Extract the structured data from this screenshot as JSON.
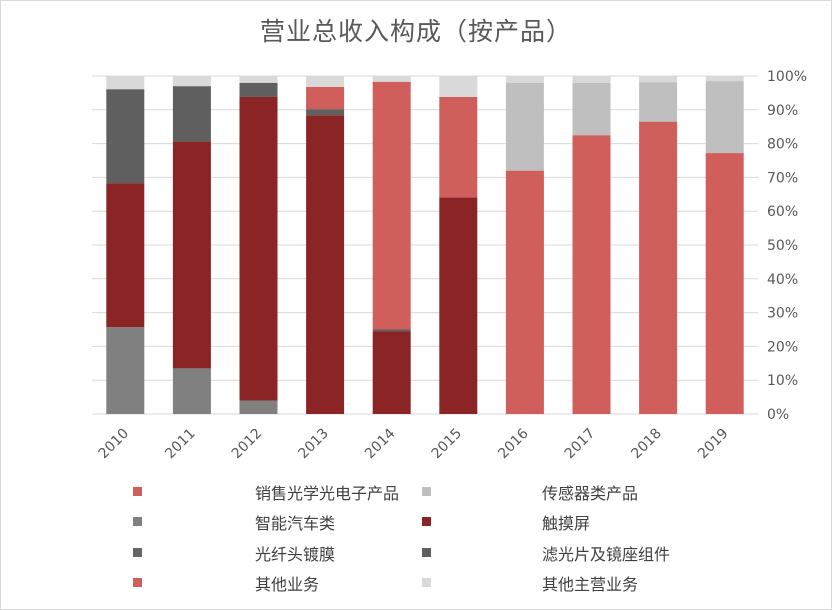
{
  "chart_data": {
    "type": "bar",
    "stacked": true,
    "percent": true,
    "title": "营业总收入构成（按产品）",
    "categories": [
      "2010",
      "2011",
      "2012",
      "2013",
      "2014",
      "2015",
      "2016",
      "2017",
      "2018",
      "2019"
    ],
    "y_ticks": [
      "0%",
      "10%",
      "20%",
      "30%",
      "40%",
      "50%",
      "60%",
      "70%",
      "80%",
      "90%",
      "100%"
    ],
    "ylim": [
      0,
      100
    ],
    "y_axis_side": "right",
    "legend_position": "bottom",
    "series": [
      {
        "name": "销售光学光电子产品",
        "color": "#d05f5c",
        "values": [
          0,
          0,
          0,
          0,
          0,
          0,
          72.0,
          82.5,
          86.5,
          77.2
        ]
      },
      {
        "name": "传感器类产品",
        "color": "#bfbfbf",
        "values": [
          0,
          0,
          0,
          0,
          0,
          0,
          26.0,
          15.5,
          11.7,
          21.3
        ]
      },
      {
        "name": "智能汽车类",
        "color": "#808080",
        "values": [
          25.7,
          13.5,
          4.0,
          0,
          0,
          0,
          0,
          0,
          0,
          0
        ]
      },
      {
        "name": "触摸屏",
        "color": "#8b2525",
        "values": [
          42.6,
          67.1,
          89.8,
          88.4,
          24.4,
          64.1,
          0,
          0,
          0,
          0
        ]
      },
      {
        "name": "光纤头镀膜",
        "color": "#666666",
        "values": [
          0,
          0,
          0,
          0,
          0,
          0,
          0,
          0,
          0,
          0
        ]
      },
      {
        "name": "滤光片及镜座组件",
        "color": "#5f5f5f",
        "values": [
          27.8,
          16.4,
          4.2,
          1.8,
          0.6,
          0,
          0,
          0,
          0,
          0
        ]
      },
      {
        "name": "其他业务",
        "color": "#d05f5c",
        "values": [
          0,
          0,
          0,
          6.6,
          73.3,
          29.7,
          0,
          0,
          0,
          0
        ]
      },
      {
        "name": "其他主营业务",
        "color": "#d9d9d9",
        "values": [
          3.9,
          3.0,
          2.0,
          3.2,
          1.7,
          6.2,
          2.0,
          2.0,
          1.8,
          1.5
        ]
      }
    ]
  }
}
